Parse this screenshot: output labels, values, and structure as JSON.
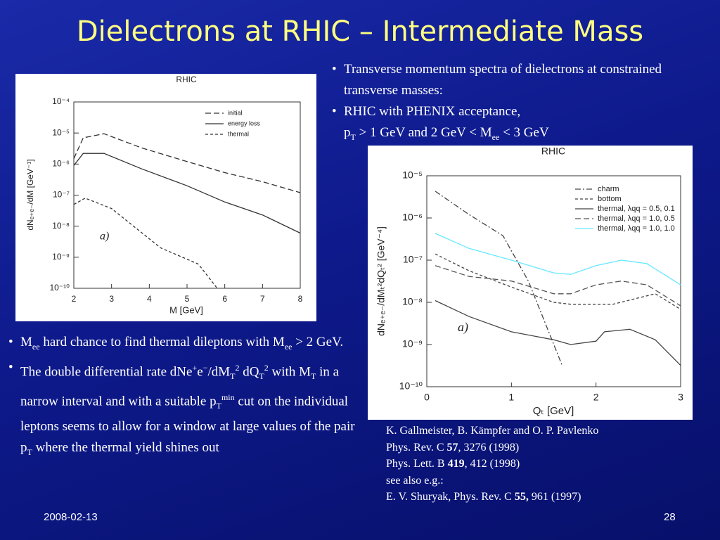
{
  "title": "Dielectrons at RHIC – Intermediate Mass",
  "bullets_top": [
    [
      [
        {
          "t": "Transverse momentum spectra of dielectrons at constrained transverse masses:"
        }
      ]
    ],
    [
      [
        {
          "t": "RHIC with PHENIX acceptance,"
        }
      ],
      [
        {
          "t": "p"
        },
        {
          "sub": "T"
        },
        {
          "t": " > 1 GeV and 2 GeV < M"
        },
        {
          "sub": "ee"
        },
        {
          "t": " < 3 GeV"
        }
      ]
    ]
  ],
  "bullets_left": [
    [
      [
        {
          "t": "M"
        },
        {
          "sub": "ee"
        },
        {
          "t": " hard chance to find thermal dileptons with M"
        },
        {
          "sub": "ee"
        },
        {
          "t": " > 2 GeV."
        }
      ]
    ],
    [
      [
        {
          "t": "The double differential rate dNe"
        },
        {
          "sup": "+"
        },
        {
          "t": "e"
        },
        {
          "sup": "−"
        },
        {
          "t": "/dM"
        },
        {
          "sub": "T"
        },
        {
          "sup": "2"
        },
        {
          "t": " dQ"
        },
        {
          "sub": "T"
        },
        {
          "sup": "2"
        },
        {
          "t": " with M"
        },
        {
          "sub": "T"
        },
        {
          "t": " in a narrow interval and with a suitable p"
        },
        {
          "sub": "T"
        },
        {
          "sup": "min"
        },
        {
          "t": " cut on the individual leptons seems to allow for a window at large values of the pair p"
        },
        {
          "sub": "T"
        },
        {
          "t": " where the thermal yield shines out"
        }
      ]
    ]
  ],
  "references": [
    [
      {
        "t": "K. Gallmeister, B. Kämpfer and O. P. Pavlenko"
      }
    ],
    [
      {
        "t": "Phys. Rev. C "
      },
      {
        "b": "57"
      },
      {
        "t": ", 3276 (1998)"
      }
    ],
    [
      {
        "t": "Phys. Lett. B "
      },
      {
        "b": "419"
      },
      {
        "t": ", 412 (1998)"
      }
    ],
    [
      {
        "t": "see also e.g.:"
      }
    ],
    [
      {
        "t": "E. V. Shuryak, Phys. Rev. C "
      },
      {
        "b": "55,"
      },
      {
        "t": " 961 (1997)"
      }
    ]
  ],
  "footer": {
    "date": "2008-02-13",
    "page": "28"
  },
  "chart_data": [
    {
      "type": "line",
      "title": "RHIC",
      "x_label": "M [GeV]",
      "y_label": "dNₑ₊ₑ₋/dM [GeV⁻¹]",
      "annotation": "a)",
      "y_log": true,
      "xlim": [
        2,
        8
      ],
      "xticks": [
        2,
        3,
        4,
        5,
        6,
        7,
        8
      ],
      "ylim": [
        1e-10,
        0.0001
      ],
      "yticks": [
        {
          "value": 1e-10,
          "label": "10⁻¹⁰"
        },
        {
          "value": 1e-09,
          "label": "10⁻⁹"
        },
        {
          "value": 1e-08,
          "label": "10⁻⁸"
        },
        {
          "value": 1e-07,
          "label": "10⁻⁷"
        },
        {
          "value": 1e-06,
          "label": "10⁻⁶"
        },
        {
          "value": 1e-05,
          "label": "10⁻⁵"
        },
        {
          "value": 0.0001,
          "label": "10⁻⁴"
        }
      ],
      "series": [
        {
          "name": "initial",
          "color": "#333333",
          "dash": "long",
          "x": [
            2,
            2.25,
            2.8,
            3.8,
            5,
            6,
            7,
            8
          ],
          "values": [
            1.5e-06,
            7e-06,
            9.5e-06,
            3.3e-06,
            1.2e-06,
            5.3e-07,
            2.7e-07,
            1.2e-07
          ]
        },
        {
          "name": "energy loss",
          "color": "#333333",
          "dash": "solid",
          "x": [
            2,
            2.25,
            2.8,
            3.8,
            5,
            6,
            7,
            8
          ],
          "values": [
            9e-07,
            2.2e-06,
            2.2e-06,
            7e-07,
            2e-07,
            6e-08,
            2.3e-08,
            6e-09
          ]
        },
        {
          "name": "thermal",
          "color": "#333333",
          "dash": "short",
          "x": [
            2,
            2.3,
            3,
            4.3,
            5.3,
            5.8
          ],
          "values": [
            5e-08,
            8e-08,
            3.7e-08,
            2e-09,
            6e-10,
            1e-10
          ]
        }
      ]
    },
    {
      "type": "line",
      "title": "RHIC",
      "x_label": "Qₜ [GeV]",
      "y_label": "dNₑ₊ₑ₋/dMₜ²dQₜ² [GeV⁻⁴]",
      "annotation": "a)",
      "y_log": true,
      "xlim": [
        0,
        3
      ],
      "xticks": [
        0,
        1,
        2,
        3
      ],
      "ylim": [
        1e-10,
        1e-05
      ],
      "yticks": [
        {
          "value": 1e-10,
          "label": "10⁻¹⁰"
        },
        {
          "value": 1e-09,
          "label": "10⁻⁹"
        },
        {
          "value": 1e-08,
          "label": "10⁻⁸"
        },
        {
          "value": 1e-07,
          "label": "10⁻⁷"
        },
        {
          "value": 1e-06,
          "label": "10⁻⁶"
        },
        {
          "value": 1e-05,
          "label": "10⁻⁵"
        }
      ],
      "series": [
        {
          "name": "charm",
          "color": "#444444",
          "dash": "dashdot",
          "x": [
            0.1,
            0.5,
            0.9,
            1.2,
            1.4,
            1.6
          ],
          "values": [
            4.3e-06,
            1.2e-06,
            3.8e-07,
            3.2e-08,
            3.2e-09,
            3.2e-10
          ]
        },
        {
          "name": "bottom",
          "color": "#444444",
          "dash": "short",
          "x": [
            0.1,
            0.5,
            1,
            1.5,
            1.7,
            2.2,
            2.7,
            3
          ],
          "values": [
            1.4e-07,
            5.6e-08,
            2.3e-08,
            1e-08,
            9e-09,
            9e-09,
            1.6e-08,
            6.8e-09
          ]
        },
        {
          "name": "thermal, λqq = 0.5, 0.1",
          "color": "#444444",
          "dash": "solid",
          "x": [
            0.1,
            0.5,
            1,
            1.5,
            1.7,
            2,
            2.1,
            2.4,
            2.7,
            3
          ],
          "values": [
            1.1e-08,
            4.6e-09,
            2e-09,
            1.3e-09,
            1e-09,
            1.2e-09,
            2e-09,
            2.3e-09,
            1.3e-09,
            3.2e-10
          ]
        },
        {
          "name": "thermal, λqq = 1.0, 0.5",
          "color": "#555555",
          "dash": "long",
          "x": [
            0.1,
            0.5,
            1,
            1.5,
            1.7,
            2,
            2.3,
            2.6,
            3
          ],
          "values": [
            7.4e-08,
            4.1e-08,
            3.2e-08,
            1.6e-08,
            1.6e-08,
            2.6e-08,
            3.2e-08,
            2.6e-08,
            8.3e-09
          ]
        },
        {
          "name": "thermal, λqq = 1.0, 1.0",
          "color": "#66e8ff",
          "dash": "solid",
          "x": [
            0.1,
            0.5,
            1,
            1.5,
            1.7,
            2,
            2.3,
            2.6,
            3
          ],
          "values": [
            4.3e-07,
            1.9e-07,
            1e-07,
            5e-08,
            4.6e-08,
            7.4e-08,
            1e-07,
            8.3e-08,
            2.6e-08
          ]
        }
      ]
    }
  ]
}
